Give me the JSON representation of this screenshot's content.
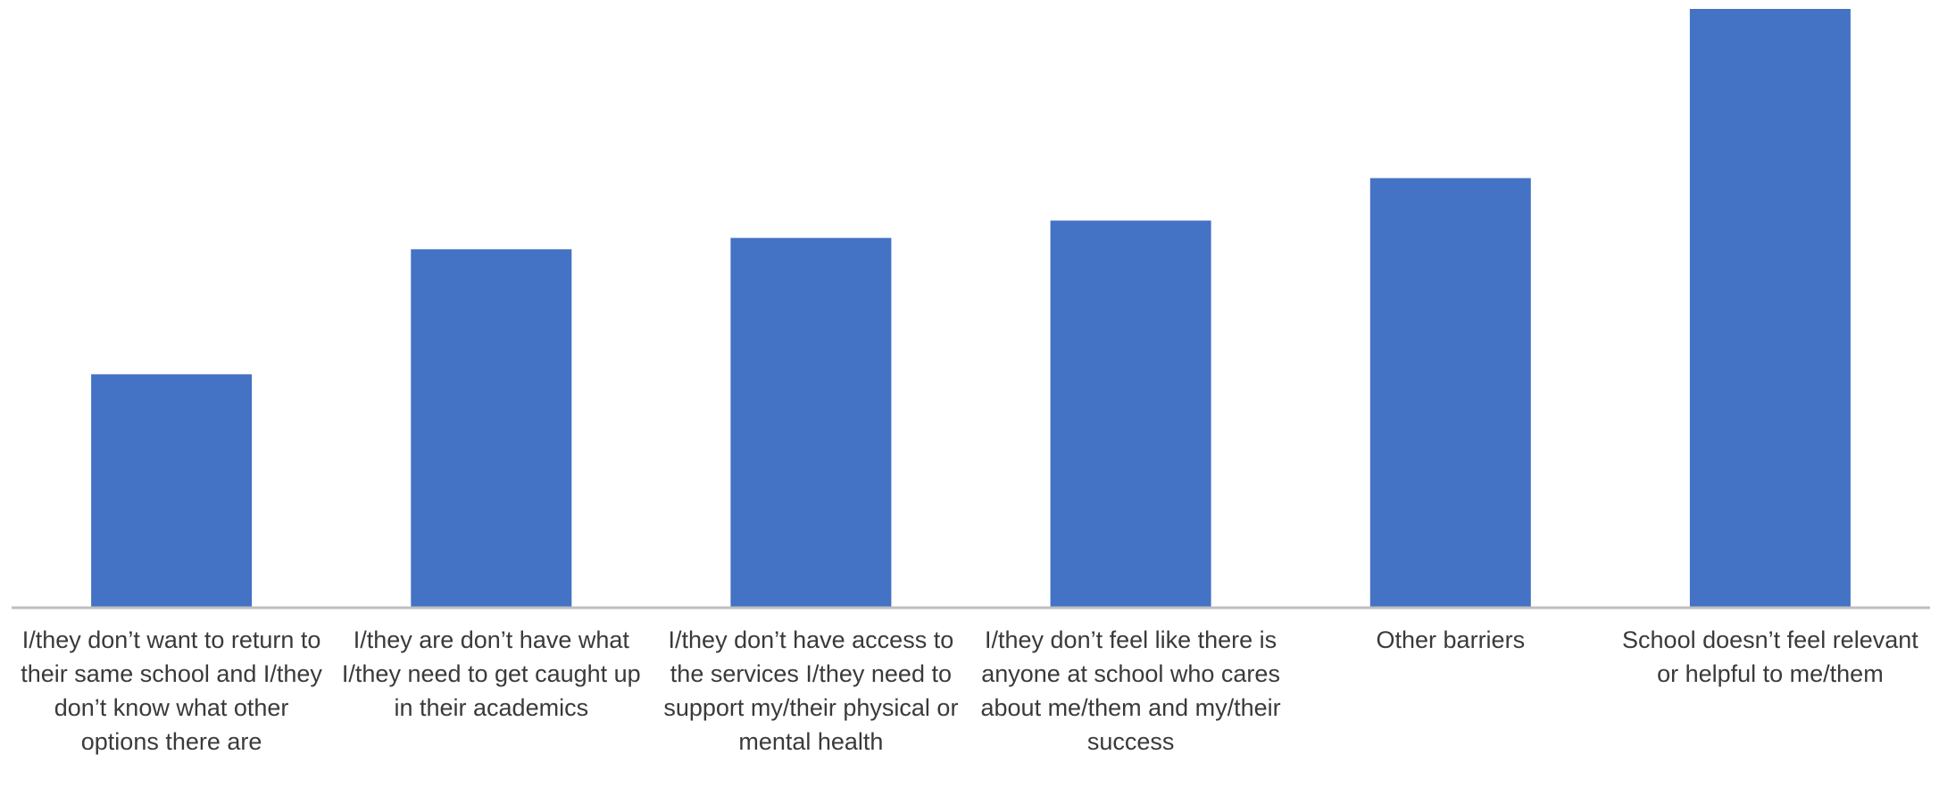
{
  "chart_data": {
    "type": "bar",
    "title": "",
    "xlabel": "",
    "ylabel": "",
    "ylim": [
      0,
      100
    ],
    "categories": [
      "I/they don’t want to return to their same school and I/they don’t know what other options there are",
      "I/they are don’t have what I/they need to get caught up in their academics",
      "I/they don’t have access to the services I/they need to support my/their physical or mental health",
      "I/they don’t feel like there is anyone at school who cares about me/them and my/their success",
      "Other barriers",
      "School doesn’t feel relevant or helpful to me/them"
    ],
    "series": [
      {
        "values": [
          38.9,
          59.8,
          61.7,
          64.6,
          71.7,
          100
        ]
      }
    ],
    "grid": false,
    "legend": "none",
    "bar_color": "#4472C4",
    "axis_color": "#BFBFBF"
  }
}
